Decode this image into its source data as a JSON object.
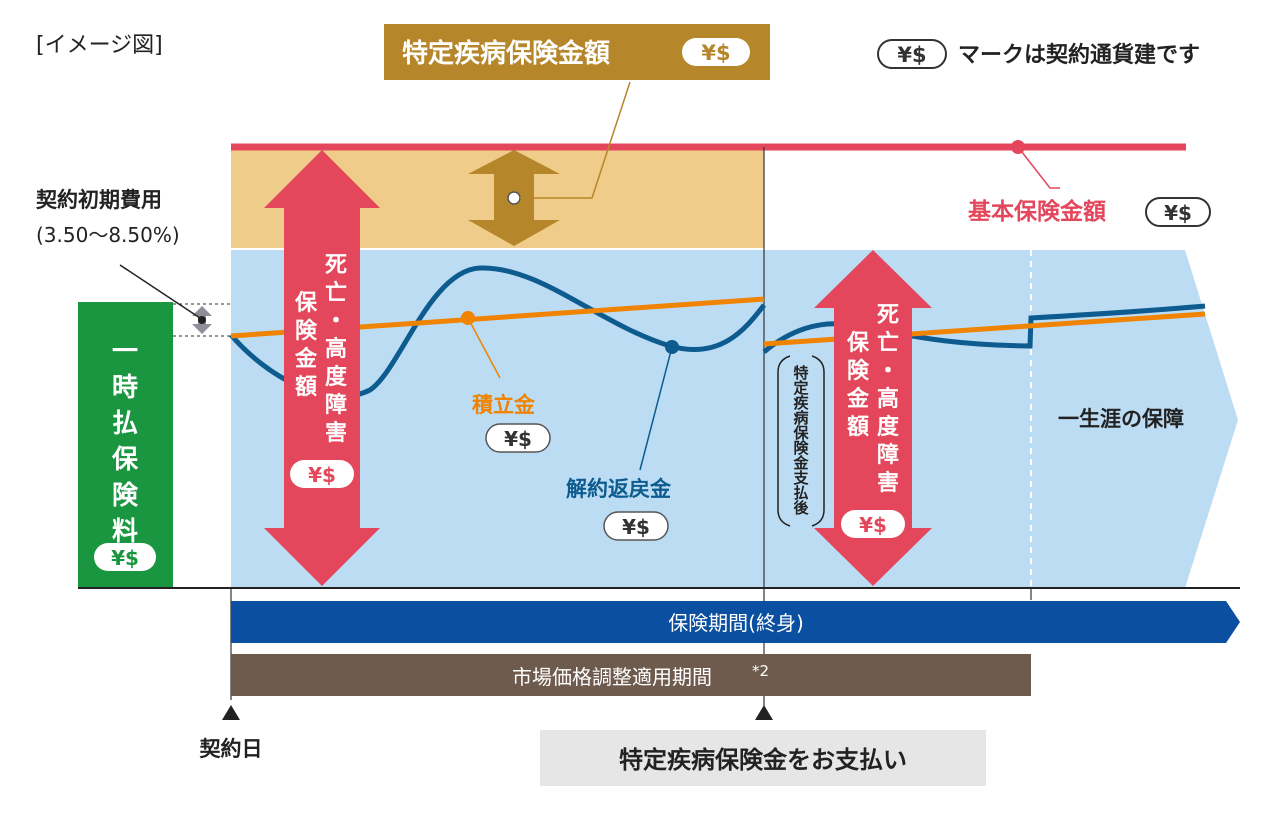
{
  "image_label": "[イメージ図]",
  "currency_badge": "¥$",
  "currency_note": "マークは契約通貨建です",
  "top_banner": {
    "label": "特定疾病保険金額"
  },
  "basic_amount": {
    "label": "基本保険金額"
  },
  "initial_cost": {
    "label": "契約初期費用",
    "rate": "(3.50〜8.50%)"
  },
  "premium": {
    "label": "一時払保険料"
  },
  "death_benefit": {
    "label_line1": "死亡・高度障害",
    "label_line2": "保険金額"
  },
  "accumulation": {
    "label": "積立金"
  },
  "surrender": {
    "label": "解約返戻金"
  },
  "after_payment": {
    "label": "特定疾病保険金支払後"
  },
  "lifetime": {
    "label": "一生涯の保障"
  },
  "insurance_period": {
    "label": "保険期間(終身)"
  },
  "mva_period": {
    "label": "市場価格調整適用期間",
    "note": "*2"
  },
  "contract_date": {
    "label": "契約日"
  },
  "payment_event": {
    "label": "特定疾病保険金をお支払い"
  },
  "colors": {
    "gold": "#b5862a",
    "tan": "#f0cc8a",
    "light_blue": "#bcdcf4",
    "red": "#e4465b",
    "navy": "#0a4fa0",
    "curve_blue": "#0d5b8f",
    "orange": "#f08300",
    "green": "#1a9640",
    "brown": "#6e5b4e",
    "gray_box": "#e6e6e6"
  }
}
